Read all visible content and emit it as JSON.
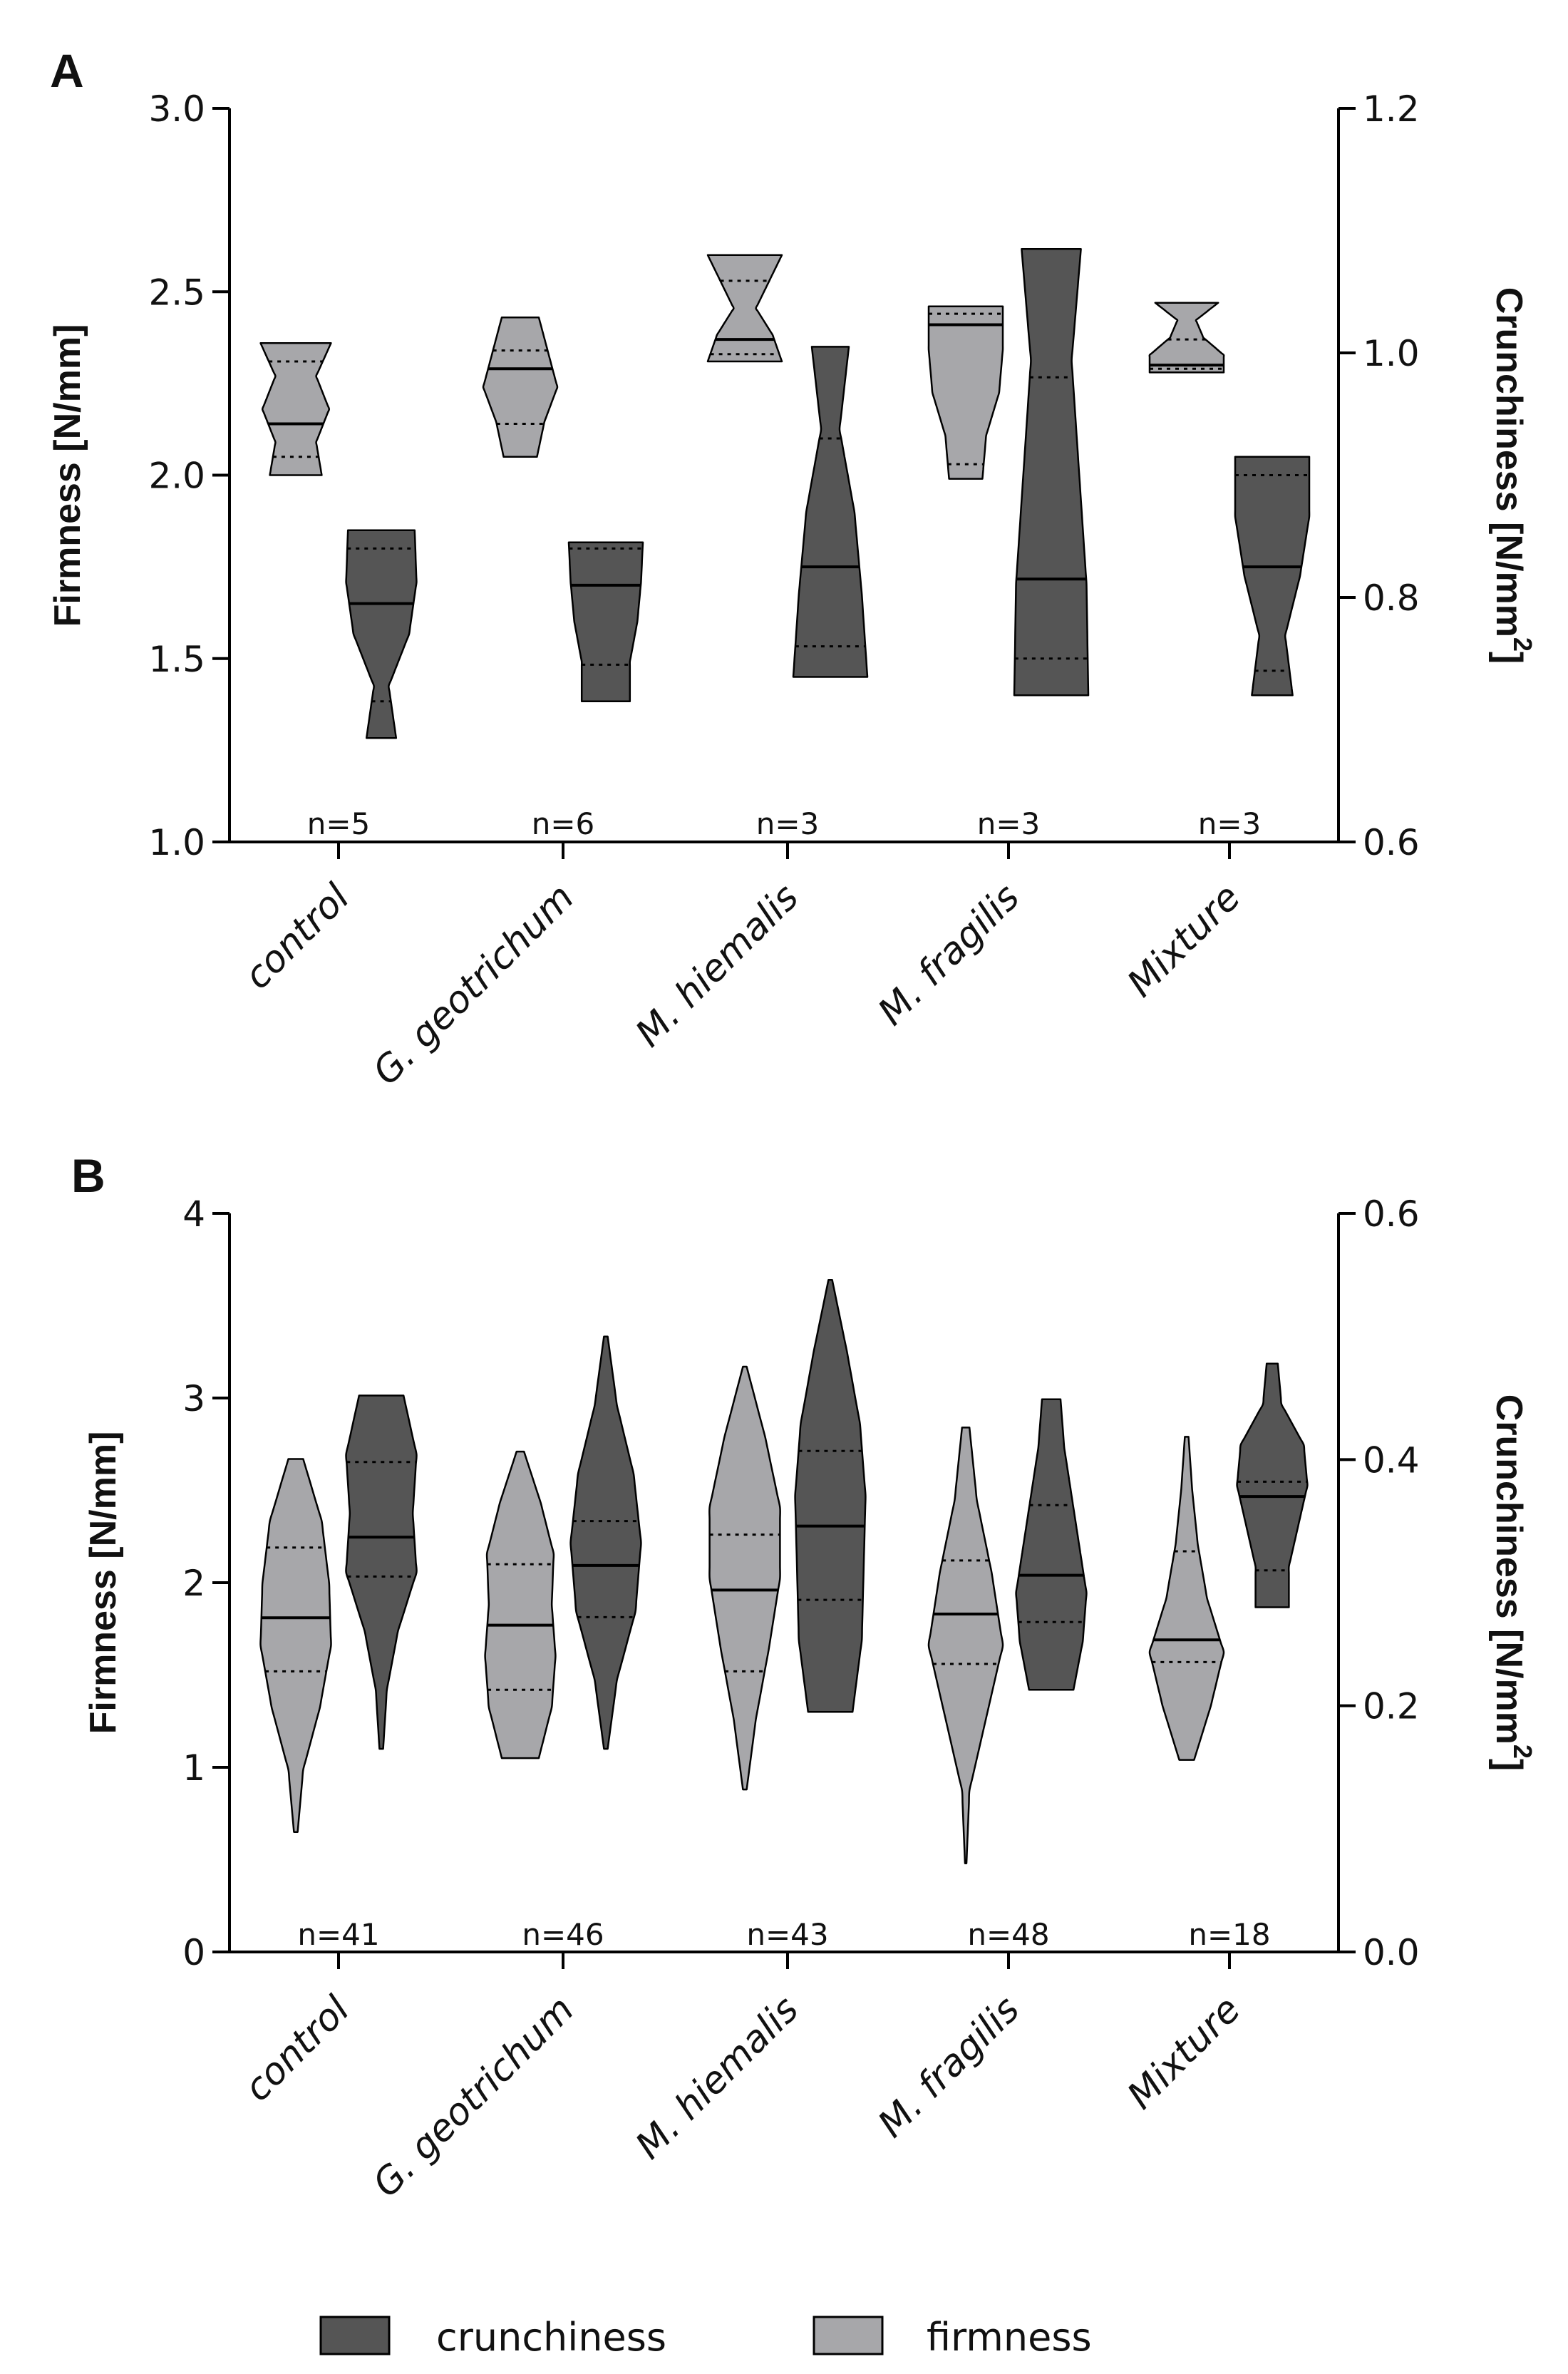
{
  "chart_data": [
    {
      "panel_label": "A",
      "type": "violin",
      "categories": [
        "control",
        "G. geotrichum",
        "M. hiemalis",
        "M. fragilis",
        "Mixture"
      ],
      "n_labels": [
        "n=5",
        "n=6",
        "n=3",
        "n=3",
        "n=3"
      ],
      "y_left": {
        "label": "Firmness [N/mm]",
        "range": [
          1.0,
          3.0
        ],
        "ticks": [
          "1.0",
          "1.5",
          "2.0",
          "2.5",
          "3.0"
        ]
      },
      "y_right": {
        "label": "Crunchiness [N/mm",
        "label_superscript": "2",
        "label_end": "]",
        "range": [
          0.6,
          1.2
        ],
        "ticks": [
          "0.6",
          "0.8",
          "1.0",
          "1.2"
        ]
      },
      "series": [
        {
          "name": "firmness",
          "axis": "left",
          "color": "#a7a7aa",
          "violins": [
            {
              "min": 2.0,
              "q1": 2.05,
              "median": 2.14,
              "q3": 2.31,
              "max": 2.36,
              "w": [
                0.7,
                0.55,
                0.9,
                0.55,
                0.95
              ]
            },
            {
              "min": 2.05,
              "q1": 2.14,
              "median": 2.29,
              "q3": 2.34,
              "max": 2.43,
              "w": [
                0.45,
                0.65,
                1.0,
                0.75,
                0.5
              ]
            },
            {
              "min": 2.31,
              "q1": 2.33,
              "median": 2.37,
              "q3": 2.53,
              "max": 2.6,
              "w": [
                1.0,
                0.75,
                0.3,
                0.65,
                1.0
              ]
            },
            {
              "min": 1.99,
              "q1": 2.03,
              "median": 2.41,
              "q3": 2.44,
              "max": 2.46,
              "w": [
                0.45,
                0.55,
                0.9,
                1.0,
                1.0
              ]
            },
            {
              "min": 2.28,
              "q1": 2.29,
              "median": 2.3,
              "q3": 2.37,
              "max": 2.47,
              "w": [
                1.0,
                1.0,
                0.45,
                0.25,
                0.85
              ]
            }
          ]
        },
        {
          "name": "crunchiness",
          "axis": "right",
          "color": "#555555",
          "violins": [
            {
              "min": 0.685,
              "q1": 0.715,
              "median": 0.795,
              "q3": 0.84,
              "max": 0.855,
              "w": [
                0.4,
                0.2,
                0.75,
                0.95,
                0.9
              ]
            },
            {
              "min": 0.715,
              "q1": 0.745,
              "median": 0.81,
              "q3": 0.84,
              "max": 0.845,
              "w": [
                0.65,
                0.65,
                0.85,
                0.95,
                1.0
              ]
            },
            {
              "min": 0.735,
              "q1": 0.76,
              "median": 0.825,
              "q3": 0.93,
              "max": 1.005,
              "w": [
                1.0,
                0.85,
                0.65,
                0.25,
                0.5
              ]
            },
            {
              "min": 0.72,
              "q1": 0.75,
              "median": 0.815,
              "q3": 0.98,
              "max": 1.085,
              "w": [
                1.0,
                0.95,
                0.75,
                0.55,
                0.8
              ]
            },
            {
              "min": 0.72,
              "q1": 0.74,
              "median": 0.825,
              "q3": 0.9,
              "max": 0.915,
              "w": [
                0.55,
                0.35,
                0.75,
                1.0,
                1.0
              ]
            }
          ]
        }
      ]
    },
    {
      "panel_label": "B",
      "type": "violin",
      "categories": [
        "control",
        "G. geotrichum",
        "M. hiemalis",
        "M. fragilis",
        "Mixture"
      ],
      "n_labels": [
        "n=41",
        "n=46",
        "n=43",
        "n=48",
        "n=18"
      ],
      "y_left": {
        "label": "Firmness [N/mm]",
        "range": [
          0,
          4
        ],
        "ticks": [
          "0",
          "1",
          "2",
          "3",
          "4"
        ]
      },
      "y_right": {
        "label": "Crunchiness [N/mm",
        "label_superscript": "2",
        "label_end": "]",
        "range": [
          0.0,
          0.6
        ],
        "ticks": [
          "0.0",
          "0.2",
          "0.4",
          "0.6"
        ]
      },
      "series": [
        {
          "name": "firmness",
          "axis": "left",
          "color": "#a7a7aa",
          "violins": [
            {
              "min": 0.65,
              "q1": 1.52,
              "median": 1.81,
              "q3": 2.19,
              "max": 2.67,
              "w": [
                0.05,
                0.2,
                0.65,
                0.95,
                0.9,
                0.7,
                0.2
              ]
            },
            {
              "min": 1.05,
              "q1": 1.42,
              "median": 1.77,
              "q3": 2.1,
              "max": 2.71,
              "w": [
                0.5,
                0.85,
                0.95,
                0.85,
                0.9,
                0.55,
                0.1
              ]
            },
            {
              "min": 0.88,
              "q1": 1.52,
              "median": 1.96,
              "q3": 2.26,
              "max": 3.17,
              "w": [
                0.05,
                0.3,
                0.65,
                0.95,
                0.95,
                0.55,
                0.05
              ]
            },
            {
              "min": 0.48,
              "q1": 1.56,
              "median": 1.83,
              "q3": 2.12,
              "max": 2.84,
              "w": [
                0.02,
                0.1,
                0.55,
                1.0,
                0.7,
                0.3,
                0.1
              ]
            },
            {
              "min": 1.04,
              "q1": 1.57,
              "median": 1.69,
              "q3": 2.17,
              "max": 2.79,
              "w": [
                0.2,
                0.65,
                1.0,
                0.55,
                0.3,
                0.15,
                0.05
              ]
            }
          ]
        },
        {
          "name": "crunchiness",
          "axis": "right",
          "color": "#555555",
          "violins": [
            {
              "min": 0.165,
              "q1": 0.305,
              "median": 0.337,
              "q3": 0.398,
              "max": 0.452,
              "w": [
                0.05,
                0.15,
                0.45,
                0.95,
                0.85,
                0.95,
                0.6
              ]
            },
            {
              "min": 0.165,
              "q1": 0.272,
              "median": 0.314,
              "q3": 0.35,
              "max": 0.5,
              "w": [
                0.05,
                0.3,
                0.8,
                0.95,
                0.75,
                0.3,
                0.05
              ]
            },
            {
              "min": 0.195,
              "q1": 0.286,
              "median": 0.346,
              "q3": 0.407,
              "max": 0.546,
              "w": [
                0.6,
                0.85,
                0.9,
                0.95,
                0.8,
                0.45,
                0.05
              ]
            },
            {
              "min": 0.213,
              "q1": 0.268,
              "median": 0.306,
              "q3": 0.363,
              "max": 0.449,
              "w": [
                0.6,
                0.85,
                0.95,
                0.75,
                0.55,
                0.35,
                0.25
              ]
            },
            {
              "min": 0.28,
              "q1": 0.31,
              "median": 0.37,
              "q3": 0.382,
              "max": 0.478,
              "w": [
                0.45,
                0.45,
                0.7,
                0.95,
                0.85,
                0.25,
                0.15
              ]
            }
          ]
        }
      ]
    }
  ],
  "legend": [
    {
      "label": "crunchiness",
      "color": "#555555"
    },
    {
      "label": "firmness",
      "color": "#a7a7aa"
    }
  ]
}
